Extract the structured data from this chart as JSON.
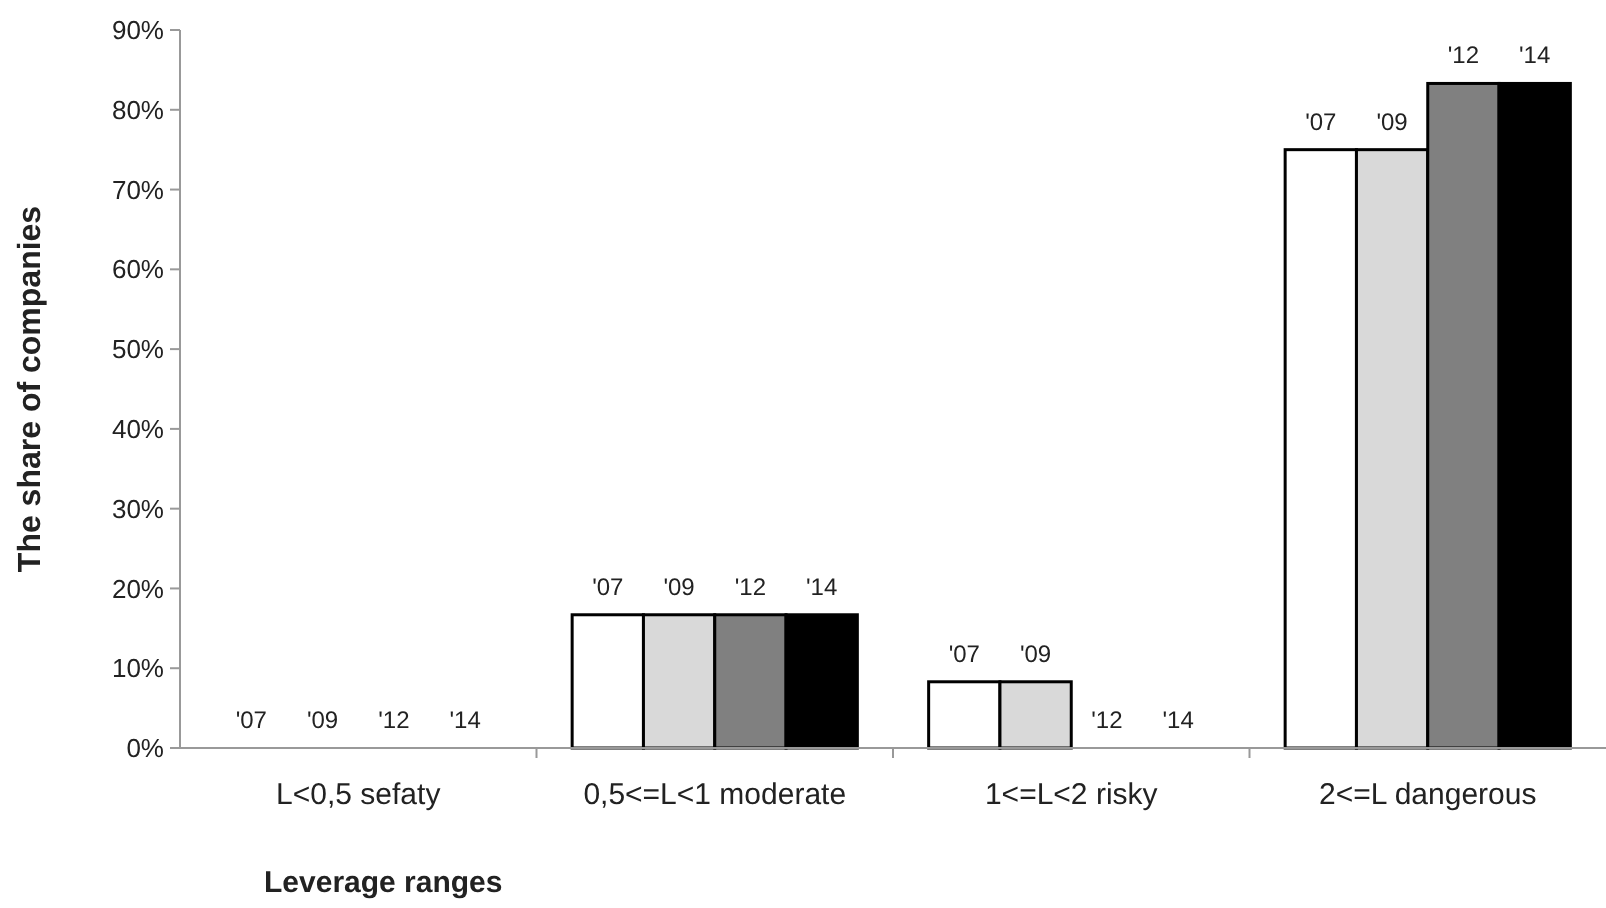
{
  "chart_data": {
    "type": "bar",
    "xlabel": "Leverage ranges",
    "ylabel": "The share of companies",
    "categories": [
      "L<0,5 sefaty",
      "0,5<=L<1 moderate",
      "1<=L<2 risky",
      "2<=L dangerous"
    ],
    "series": [
      {
        "name": "'07",
        "color": "#ffffff",
        "values": [
          0,
          16.7,
          8.3,
          75
        ]
      },
      {
        "name": "'09",
        "color": "#d9d9d9",
        "values": [
          0,
          16.7,
          8.3,
          75
        ]
      },
      {
        "name": "'12",
        "color": "#808080",
        "values": [
          0,
          16.7,
          0,
          83.3
        ]
      },
      {
        "name": "'14",
        "color": "#000000",
        "values": [
          0,
          16.7,
          0,
          83.3
        ]
      }
    ],
    "ylim": [
      0,
      90
    ],
    "yticks": [
      {
        "value": 0,
        "label": "0%"
      },
      {
        "value": 10,
        "label": "10%"
      },
      {
        "value": 20,
        "label": "20%"
      },
      {
        "value": 30,
        "label": "30%"
      },
      {
        "value": 40,
        "label": "40%"
      },
      {
        "value": 50,
        "label": "50%"
      },
      {
        "value": 60,
        "label": "60%"
      },
      {
        "value": 70,
        "label": "70%"
      },
      {
        "value": 80,
        "label": "80%"
      },
      {
        "value": 90,
        "label": "90%"
      }
    ],
    "grid": false
  }
}
